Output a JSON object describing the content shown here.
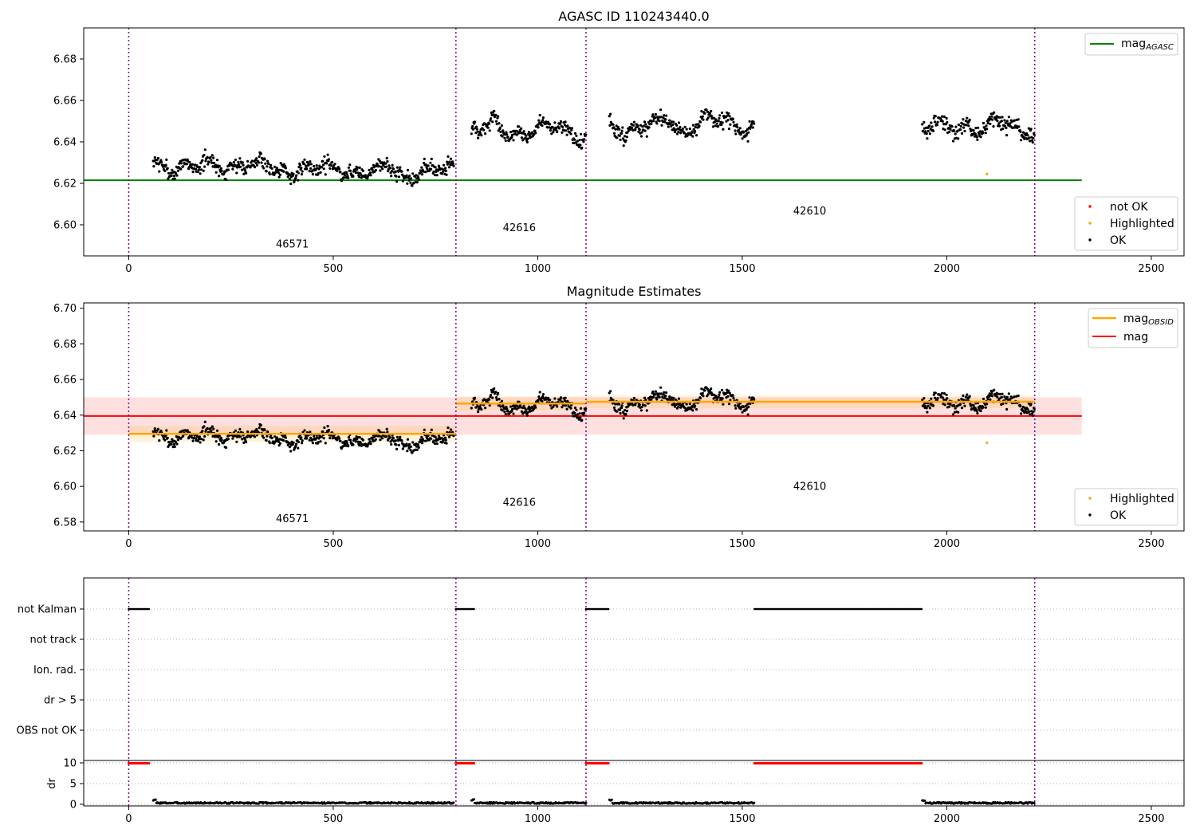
{
  "chart_data": [
    {
      "type": "scatter",
      "title": "AGASC ID 110243440.0",
      "xlim": [
        -110,
        2580
      ],
      "ylim": [
        6.585,
        6.695
      ],
      "xticks": [
        0,
        500,
        1000,
        1500,
        2000,
        2500
      ],
      "yticks": [
        6.6,
        6.62,
        6.64,
        6.66,
        6.68
      ],
      "obs_boundaries": [
        0,
        800,
        1118,
        2215
      ],
      "obsids": [
        {
          "label": "46571",
          "x": 400,
          "y": 6.589
        },
        {
          "label": "42616",
          "x": 955,
          "y": 6.597
        },
        {
          "label": "42610",
          "x": 1665,
          "y": 6.605
        }
      ],
      "mag_agasc": {
        "value": 6.6215,
        "x_range": [
          -110,
          2330
        ],
        "color": "#008000"
      },
      "segments": [
        {
          "x0": 60,
          "x1": 795,
          "base": 6.6285,
          "amp": 0.0045,
          "noise": 0.0045
        },
        {
          "x0": 838,
          "x1": 1118,
          "base": 6.646,
          "amp": 0.007,
          "noise": 0.0045
        },
        {
          "x0": 1175,
          "x1": 1530,
          "base": 6.6475,
          "amp": 0.006,
          "noise": 0.0045
        },
        {
          "x0": 1940,
          "x1": 2215,
          "base": 6.647,
          "amp": 0.0055,
          "noise": 0.0045
        }
      ],
      "highlighted": [
        {
          "x": 2098,
          "y": 6.6245
        }
      ],
      "legend_upper": [
        "mag_AGASC"
      ],
      "legend_lower": [
        "not OK",
        "Highlighted",
        "OK"
      ],
      "legend_colors": {
        "not_ok": "#ff0000",
        "highlighted": "#ffa500",
        "ok": "#000000"
      }
    },
    {
      "type": "scatter",
      "title": "Magnitude Estimates",
      "xlim": [
        -110,
        2580
      ],
      "ylim": [
        6.575,
        6.703
      ],
      "xticks": [
        0,
        500,
        1000,
        1500,
        2000,
        2500
      ],
      "yticks": [
        6.58,
        6.6,
        6.62,
        6.64,
        6.66,
        6.68,
        6.7
      ],
      "obs_boundaries": [
        0,
        800,
        1118,
        2215
      ],
      "obsids": [
        {
          "label": "46571",
          "x": 400,
          "y": 6.58
        },
        {
          "label": "42616",
          "x": 955,
          "y": 6.589
        },
        {
          "label": "42610",
          "x": 1665,
          "y": 6.598
        }
      ],
      "mag": {
        "value": 6.6395,
        "band": [
          6.629,
          6.65
        ],
        "x_range": [
          -110,
          2330
        ],
        "color": "#ff0000"
      },
      "mag_obsid": [
        {
          "x0": 0,
          "x1": 800,
          "value": 6.6295,
          "band": [
            6.625,
            6.634
          ]
        },
        {
          "x0": 800,
          "x1": 1118,
          "value": 6.6465,
          "band": [
            6.6425,
            6.6505
          ]
        },
        {
          "x0": 1118,
          "x1": 2215,
          "value": 6.6475,
          "band": [
            6.644,
            6.651
          ]
        }
      ],
      "legend_upper": [
        "mag_OBSID",
        "mag"
      ],
      "legend_lower": [
        "Highlighted",
        "OK"
      ]
    },
    {
      "type": "scatter",
      "flag_rows": [
        "not Kalman",
        "not track",
        "Ion. rad.",
        "dr > 5",
        "OBS not OK"
      ],
      "not_kalman_ranges": [
        [
          0,
          50
        ],
        [
          800,
          845
        ],
        [
          1118,
          1175
        ],
        [
          1530,
          1940
        ]
      ],
      "xlim": [
        -110,
        2580
      ],
      "xticks": [
        0,
        500,
        1000,
        1500,
        2000,
        2500
      ]
    },
    {
      "type": "scatter",
      "ylabel": "dr",
      "yticks": [
        0,
        5,
        10
      ],
      "ylim": [
        -0.5,
        10.5
      ],
      "high_dr_ranges": [
        [
          0,
          50
        ],
        [
          800,
          845
        ],
        [
          1118,
          1175
        ],
        [
          1530,
          1940
        ]
      ],
      "high_dr_value": 9.9,
      "xlim": [
        -110,
        2580
      ],
      "xticks": [
        0,
        500,
        1000,
        1500,
        2000,
        2500
      ]
    }
  ],
  "legend": {
    "mag_agasc_main": "mag",
    "mag_agasc_sub": "AGASC",
    "mag_obsid_main": "mag",
    "mag_obsid_sub": "OBSID",
    "mag": "mag",
    "not_ok": "not OK",
    "highlighted": "Highlighted",
    "ok": "OK"
  }
}
